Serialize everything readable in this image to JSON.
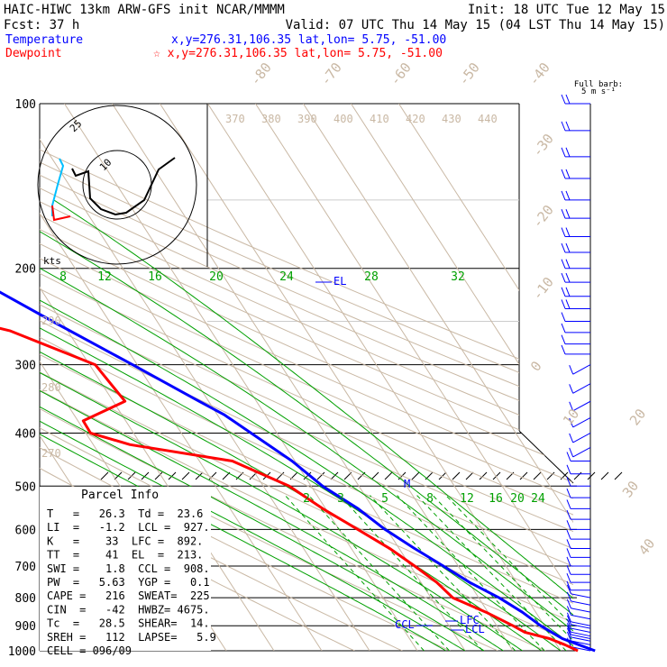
{
  "header": {
    "line1_left": "HAIC-HIWC 13km ARW-GFS init   NCAR/MMMM",
    "line1_right": "Init: 18 UTC Tue 12 May 15",
    "line2_left": "Fcst:   37 h",
    "line2_right": "Valid: 07 UTC Thu 14 May 15 (04 LST Thu 14 May 15)",
    "temp_label": "Temperature",
    "temp_coord": "x,y=276.31,106.35   lat,lon=  5.75, -51.00",
    "dew_label": "Dewpoint",
    "dew_coord": "☆ x,y=276.31,106.35   lat,lon=  5.75, -51.00"
  },
  "barb_key": {
    "line1": "Full barb:",
    "line2": "5 m s⁻¹"
  },
  "hodograph": {
    "units": "kts",
    "ring_labels": [
      "10",
      "25"
    ]
  },
  "parcel_info": {
    "title": "Parcel Info",
    "rows": [
      "T   =   26.3  Td =  23.6",
      "LI  =   -1.2  LCL =  927.",
      "K   =    33  LFC =  892.",
      "TT  =    41  EL  =  213.",
      "SWI =    1.8  CCL =  908.",
      "PW  =   5.63  YGP =   0.1",
      "CAPE =   216  SWEAT=  225",
      "CIN  =   -42  HWBZ= 4675.",
      "Tc  =   28.5  SHEAR=  14.",
      "SREH =   112  LAPSE=   5.9",
      "CELL = 096/09"
    ]
  },
  "chart_data": {
    "type": "line",
    "title": "Skew-T log-P sounding",
    "pressure_levels": [
      100,
      200,
      300,
      400,
      500,
      600,
      700,
      800,
      900,
      1000
    ],
    "isotherm_labels": [
      "-80",
      "-70",
      "-60",
      "-50",
      "-40",
      "-30",
      "-20",
      "-10",
      "0",
      "10",
      "20",
      "30",
      "40"
    ],
    "theta_e_labels": [
      "370",
      "380",
      "390",
      "400",
      "410",
      "420",
      "430",
      "440"
    ],
    "dry_adiabat_labels": [
      "290",
      "280",
      "270"
    ],
    "moist_adiabat_labels": [
      "8",
      "12",
      "16",
      "20",
      "24",
      "28",
      "32"
    ],
    "mixing_ratio_labels": [
      "2",
      "3",
      "5",
      "8",
      "12",
      "16",
      "20",
      "24"
    ],
    "level_labels": [
      "EL",
      "M",
      "LFC",
      "LCL",
      "CCL"
    ],
    "series": [
      {
        "name": "Temperature",
        "color": "#0000ff",
        "points": [
          [
            1000,
            27.2
          ],
          [
            975,
            24.6
          ],
          [
            950,
            22.0
          ],
          [
            925,
            20.6
          ],
          [
            900,
            19.2
          ],
          [
            850,
            17.2
          ],
          [
            800,
            14.3
          ],
          [
            750,
            10.2
          ],
          [
            700,
            6.9
          ],
          [
            650,
            3.2
          ],
          [
            600,
            -0.4
          ],
          [
            550,
            -3.2
          ],
          [
            500,
            -7.6
          ],
          [
            450,
            -10.6
          ],
          [
            400,
            -15.4
          ],
          [
            370,
            -18.6
          ],
          [
            350,
            -22.0
          ],
          [
            300,
            -31.0
          ],
          [
            250,
            -41.9
          ],
          [
            200,
            -54.7
          ],
          [
            175,
            -62.8
          ],
          [
            150,
            -70.1
          ],
          [
            125,
            -76.6
          ],
          [
            100,
            -82.5
          ]
        ]
      },
      {
        "name": "Dewpoint",
        "color": "#ff0000",
        "points": [
          [
            1000,
            23.6
          ],
          [
            975,
            21.7
          ],
          [
            950,
            19.3
          ],
          [
            925,
            15.0
          ],
          [
            900,
            13.4
          ],
          [
            850,
            9.6
          ],
          [
            800,
            4.6
          ],
          [
            750,
            3.3
          ],
          [
            700,
            0.9
          ],
          [
            650,
            -2.0
          ],
          [
            600,
            -6.1
          ],
          [
            550,
            -10.6
          ],
          [
            500,
            -14.6
          ],
          [
            450,
            -23.1
          ],
          [
            420,
            -42.3
          ],
          [
            400,
            -49.0
          ],
          [
            380,
            -48.9
          ],
          [
            350,
            -37.5
          ],
          [
            300,
            -38.8
          ],
          [
            260,
            -52.1
          ],
          [
            240,
            -66.1
          ],
          [
            210,
            -68.6
          ],
          [
            200,
            -72.6
          ],
          [
            175,
            -80.6
          ],
          [
            150,
            -92.9
          ],
          [
            125,
            -99.1
          ],
          [
            100,
            -101.5
          ]
        ]
      }
    ]
  },
  "colors": {
    "temperature": "#0000ff",
    "dewpoint": "#ff0000",
    "isotherm": "#c9b8a4",
    "moist": "#00a000",
    "hodo_gust": "#00bfff"
  }
}
